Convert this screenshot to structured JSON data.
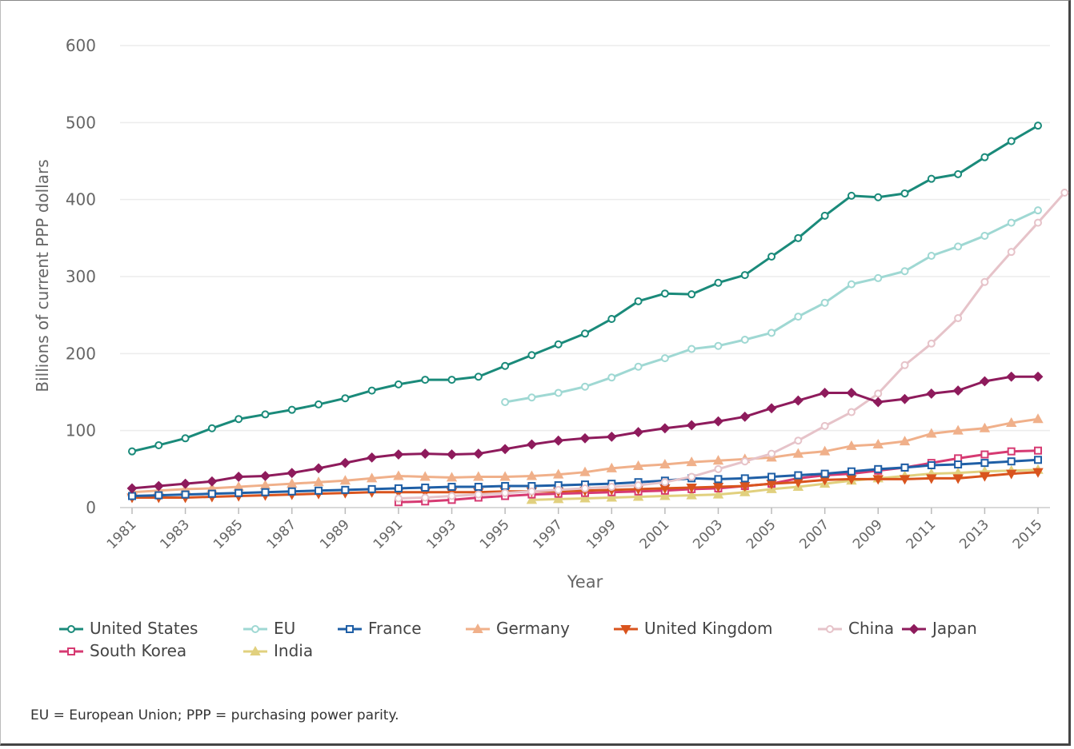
{
  "chart_data": {
    "type": "line",
    "title": "",
    "xlabel": "Year",
    "ylabel": "Billions of current PPP dollars",
    "ylim": [
      0,
      600
    ],
    "yticks": [
      0,
      100,
      200,
      300,
      400,
      500,
      600
    ],
    "xlim": [
      1981,
      2015
    ],
    "xticks": [
      1981,
      1983,
      1985,
      1987,
      1989,
      1991,
      1993,
      1995,
      1997,
      1999,
      2001,
      2003,
      2005,
      2007,
      2009,
      2011,
      2013,
      2015
    ],
    "grid": "horizontal",
    "legend_position": "bottom",
    "series": [
      {
        "name": "United States",
        "color": "#1a8a7a",
        "marker": "circle",
        "start": 1981,
        "values": [
          73,
          81,
          90,
          103,
          115,
          121,
          127,
          134,
          142,
          152,
          160,
          166,
          166,
          170,
          184,
          198,
          212,
          226,
          245,
          268,
          278,
          277,
          292,
          302,
          326,
          350,
          379,
          405,
          403,
          408,
          427,
          433,
          455,
          476,
          496
        ]
      },
      {
        "name": "EU",
        "color": "#9fd8d3",
        "marker": "circle",
        "start": 1995,
        "values": [
          137,
          143,
          149,
          157,
          169,
          183,
          194,
          206,
          210,
          218,
          227,
          248,
          266,
          290,
          298,
          307,
          327,
          339,
          353,
          370,
          386
        ]
      },
      {
        "name": "France",
        "color": "#1f5fa6",
        "marker": "square",
        "start": 1981,
        "values": [
          15,
          16,
          17,
          18,
          19,
          20,
          21,
          22,
          23,
          24,
          25,
          26,
          27,
          27,
          28,
          28,
          29,
          30,
          31,
          33,
          35,
          38,
          37,
          38,
          40,
          42,
          44,
          47,
          50,
          52,
          55,
          56,
          58,
          60,
          62
        ]
      },
      {
        "name": "Germany",
        "color": "#f0b08a",
        "marker": "triangle",
        "start": 1981,
        "values": [
          20,
          22,
          24,
          25,
          27,
          29,
          31,
          33,
          35,
          38,
          41,
          40,
          39,
          40,
          40,
          41,
          43,
          46,
          51,
          54,
          56,
          59,
          61,
          63,
          65,
          70,
          73,
          80,
          82,
          86,
          96,
          100,
          103,
          110,
          115
        ]
      },
      {
        "name": "United Kingdom",
        "color": "#d9541e",
        "marker": "triangle-down",
        "start": 1981,
        "values": [
          13,
          13,
          13,
          14,
          15,
          16,
          17,
          18,
          19,
          20,
          20,
          20,
          20,
          20,
          21,
          21,
          21,
          22,
          23,
          24,
          25,
          26,
          27,
          28,
          31,
          33,
          36,
          37,
          37,
          37,
          38,
          38,
          41,
          44,
          46
        ]
      },
      {
        "name": "China",
        "color": "#e6c3c9",
        "marker": "circle",
        "start": 1991,
        "values": [
          12,
          13,
          15,
          17,
          19,
          21,
          23,
          25,
          27,
          29,
          33,
          40,
          50,
          60,
          70,
          87,
          106,
          124,
          148,
          185,
          213,
          246,
          293,
          332,
          370,
          409
        ]
      },
      {
        "name": "Japan",
        "color": "#8e1b5c",
        "marker": "diamond",
        "start": 1981,
        "values": [
          25,
          28,
          31,
          34,
          40,
          41,
          45,
          51,
          58,
          65,
          69,
          70,
          69,
          70,
          76,
          82,
          87,
          90,
          92,
          98,
          103,
          107,
          112,
          118,
          129,
          139,
          149,
          149,
          137,
          141,
          148,
          152,
          164,
          170,
          170
        ]
      },
      {
        "name": "South Korea",
        "color": "#d63a72",
        "marker": "square",
        "start": 1991,
        "values": [
          7,
          8,
          10,
          13,
          15,
          17,
          18,
          19,
          20,
          21,
          22,
          24,
          25,
          28,
          31,
          38,
          42,
          44,
          48,
          52,
          58,
          64,
          69,
          73,
          74
        ]
      },
      {
        "name": "India",
        "color": "#e1d07e",
        "marker": "triangle",
        "start": 1996,
        "values": [
          10,
          11,
          12,
          13,
          14,
          15,
          16,
          17,
          20,
          24,
          27,
          31,
          35,
          38,
          41,
          44,
          45,
          47,
          48,
          49
        ]
      }
    ]
  },
  "legend_rows": [
    [
      "United States",
      "EU",
      "France",
      "Germany",
      "United Kingdom",
      "China",
      "Japan"
    ],
    [
      "South Korea",
      "India"
    ]
  ],
  "footnote": "EU = European Union; PPP = purchasing power parity."
}
